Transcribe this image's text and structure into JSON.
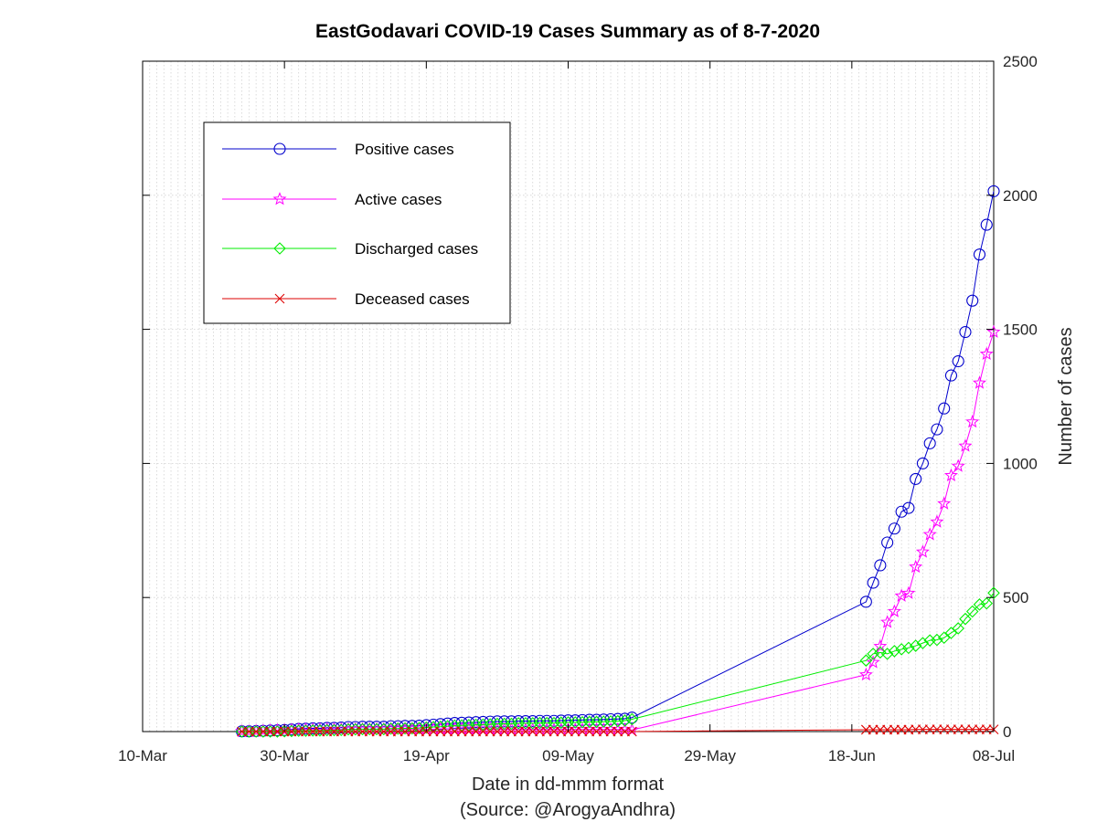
{
  "chart_data": {
    "type": "line",
    "title": "EastGodavari COVID-19 Cases Summary as of 8-7-2020",
    "xlabel": "Date in dd-mmm format",
    "xlabel_source": "(Source: @ArogyaAndhra)",
    "ylabel": "Number of cases",
    "y_axis_side": "right",
    "ylim": [
      0,
      2500
    ],
    "yticks": [
      "0",
      "500",
      "1000",
      "1500",
      "2000",
      "2500"
    ],
    "xlim": [
      "2020-03-10",
      "2020-07-08"
    ],
    "xticks": [
      {
        "date": "2020-03-10",
        "label": "10-Mar"
      },
      {
        "date": "2020-03-30",
        "label": "30-Mar"
      },
      {
        "date": "2020-04-19",
        "label": "19-Apr"
      },
      {
        "date": "2020-05-09",
        "label": "09-May"
      },
      {
        "date": "2020-05-29",
        "label": "29-May"
      },
      {
        "date": "2020-06-18",
        "label": "18-Jun"
      },
      {
        "date": "2020-07-08",
        "label": "08-Jul"
      }
    ],
    "grid": true,
    "legend_placement": "top-left",
    "dates": [
      "2020-03-24",
      "2020-03-25",
      "2020-03-26",
      "2020-03-27",
      "2020-03-28",
      "2020-03-29",
      "2020-03-30",
      "2020-03-31",
      "2020-04-01",
      "2020-04-02",
      "2020-04-03",
      "2020-04-04",
      "2020-04-05",
      "2020-04-06",
      "2020-04-07",
      "2020-04-08",
      "2020-04-09",
      "2020-04-10",
      "2020-04-11",
      "2020-04-12",
      "2020-04-13",
      "2020-04-14",
      "2020-04-15",
      "2020-04-16",
      "2020-04-17",
      "2020-04-18",
      "2020-04-19",
      "2020-04-20",
      "2020-04-21",
      "2020-04-22",
      "2020-04-23",
      "2020-04-24",
      "2020-04-25",
      "2020-04-26",
      "2020-04-27",
      "2020-04-28",
      "2020-04-29",
      "2020-04-30",
      "2020-05-01",
      "2020-05-02",
      "2020-05-03",
      "2020-05-04",
      "2020-05-05",
      "2020-05-06",
      "2020-05-07",
      "2020-05-08",
      "2020-05-09",
      "2020-05-10",
      "2020-05-11",
      "2020-05-12",
      "2020-05-13",
      "2020-05-14",
      "2020-05-15",
      "2020-05-16",
      "2020-05-17",
      "2020-05-18",
      "2020-06-20",
      "2020-06-21",
      "2020-06-22",
      "2020-06-23",
      "2020-06-24",
      "2020-06-25",
      "2020-06-26",
      "2020-06-27",
      "2020-06-28",
      "2020-06-29",
      "2020-06-30",
      "2020-07-01",
      "2020-07-02",
      "2020-07-03",
      "2020-07-04",
      "2020-07-05",
      "2020-07-06",
      "2020-07-07",
      "2020-07-08"
    ],
    "series": [
      {
        "name": "Positive cases",
        "color": "#0000cc",
        "marker": "circle",
        "values": [
          1,
          1,
          2,
          3,
          4,
          5,
          6,
          8,
          10,
          11,
          12,
          12,
          14,
          14,
          15,
          17,
          17,
          18,
          18,
          18,
          18,
          20,
          20,
          21,
          21,
          22,
          24,
          26,
          28,
          30,
          32,
          33,
          34,
          35,
          36,
          37,
          38,
          38,
          38,
          39,
          39,
          39,
          40,
          40,
          40,
          41,
          42,
          42,
          43,
          44,
          44,
          45,
          46,
          47,
          48,
          52,
          484,
          555,
          620,
          705,
          757,
          820,
          834,
          942,
          1000,
          1075,
          1127,
          1205,
          1328,
          1381,
          1490,
          1607,
          1779,
          1890,
          2015
        ]
      },
      {
        "name": "Active cases",
        "color": "#ff00ff",
        "marker": "star",
        "values": [
          1,
          1,
          2,
          3,
          4,
          5,
          5,
          6,
          7,
          8,
          8,
          8,
          9,
          9,
          9,
          9,
          9,
          9,
          9,
          9,
          9,
          9,
          9,
          9,
          9,
          9,
          9,
          9,
          10,
          10,
          10,
          10,
          10,
          10,
          10,
          10,
          9,
          9,
          9,
          8,
          8,
          8,
          8,
          8,
          8,
          8,
          8,
          8,
          8,
          8,
          8,
          8,
          8,
          8,
          7,
          6,
          212,
          258,
          318,
          408,
          448,
          506,
          516,
          614,
          670,
          735,
          782,
          850,
          955,
          990,
          1065,
          1155,
          1300,
          1408,
          1490
        ]
      },
      {
        "name": "Discharged cases",
        "color": "#00ee00",
        "marker": "diamond",
        "values": [
          0,
          0,
          0,
          0,
          0,
          0,
          1,
          2,
          3,
          3,
          4,
          4,
          5,
          5,
          6,
          8,
          8,
          9,
          9,
          9,
          9,
          11,
          11,
          12,
          12,
          13,
          15,
          17,
          18,
          20,
          22,
          23,
          24,
          25,
          26,
          27,
          29,
          29,
          29,
          31,
          31,
          31,
          32,
          32,
          32,
          33,
          34,
          34,
          35,
          36,
          36,
          37,
          38,
          39,
          41,
          46,
          265,
          290,
          295,
          290,
          300,
          307,
          312,
          320,
          330,
          340,
          342,
          350,
          368,
          385,
          420,
          448,
          474,
          478,
          517
        ]
      },
      {
        "name": "Deceased cases",
        "color": "#dd0000",
        "marker": "x",
        "values": [
          0,
          0,
          0,
          0,
          0,
          0,
          0,
          0,
          0,
          0,
          0,
          0,
          0,
          0,
          0,
          0,
          0,
          0,
          0,
          0,
          0,
          0,
          0,
          0,
          0,
          0,
          0,
          0,
          0,
          0,
          0,
          0,
          0,
          0,
          0,
          0,
          0,
          0,
          0,
          0,
          0,
          0,
          0,
          0,
          0,
          0,
          0,
          0,
          0,
          0,
          0,
          0,
          0,
          0,
          0,
          0,
          7,
          7,
          7,
          7,
          7,
          7,
          7,
          8,
          8,
          8,
          8,
          8,
          8,
          8,
          8,
          8,
          8,
          8,
          8
        ]
      }
    ]
  }
}
